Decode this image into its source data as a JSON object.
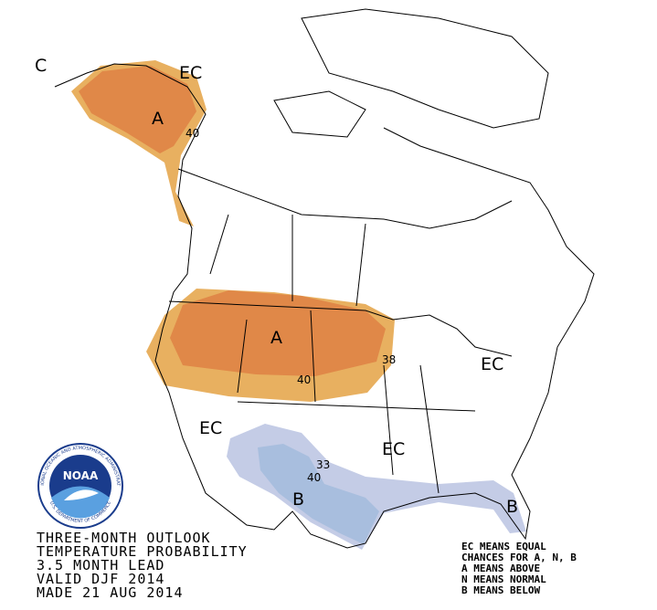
{
  "map": {
    "labels": [
      "C",
      "EC",
      "A",
      "40",
      "A",
      "38",
      "40",
      "EC",
      "EC",
      "EC",
      "33",
      "40",
      "B",
      "B"
    ]
  },
  "title_lines": [
    "THREE-MONTH OUTLOOK",
    "TEMPERATURE PROBABILITY",
    "3.5 MONTH LEAD",
    "VALID DJF 2014",
    "MADE 21 AUG 2014"
  ],
  "legend_lines": [
    "EC MEANS EQUAL",
    "CHANCES FOR A, N, B",
    "A MEANS ABOVE",
    "N MEANS NORMAL",
    "B MEANS BELOW"
  ],
  "logo": {
    "name": "NOAA",
    "ring_top": "NATIONAL OCEANIC AND ATMOSPHERIC ADMINISTRATION",
    "ring_bottom": "U.S. DEPARTMENT OF COMMERCE"
  }
}
